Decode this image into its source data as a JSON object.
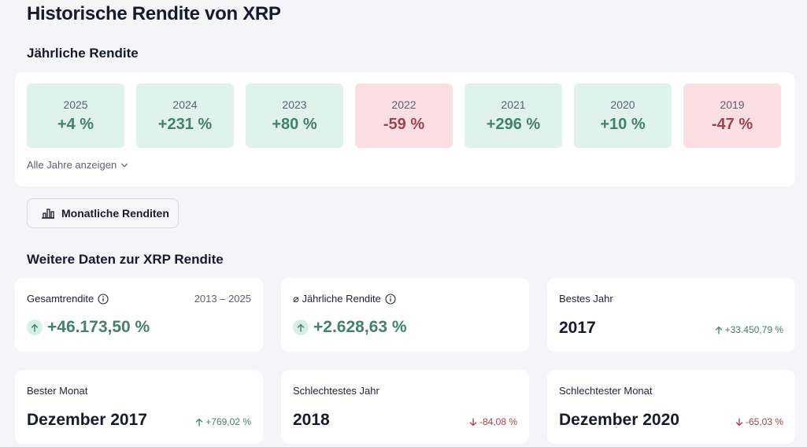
{
  "page": {
    "title": "Historische Rendite von XRP"
  },
  "yearly": {
    "title": "Jährliche Rendite",
    "tiles": [
      {
        "year": "2025",
        "value": "+4 %",
        "trend": "positive"
      },
      {
        "year": "2024",
        "value": "+231 %",
        "trend": "positive"
      },
      {
        "year": "2023",
        "value": "+80 %",
        "trend": "positive"
      },
      {
        "year": "2022",
        "value": "-59 %",
        "trend": "negative"
      },
      {
        "year": "2021",
        "value": "+296 %",
        "trend": "positive"
      },
      {
        "year": "2020",
        "value": "+10 %",
        "trend": "positive"
      },
      {
        "year": "2019",
        "value": "-47 %",
        "trend": "negative"
      }
    ],
    "show_all_label": "Alle Jahre anzeigen"
  },
  "monthly_button": {
    "label": "Monatliche Renditen",
    "icon": "bar-chart-icon"
  },
  "more": {
    "title": "Weitere Daten zur XRP Rendite",
    "total": {
      "label": "Gesamtrendite",
      "range": "2013 – 2025",
      "value": "+46.173,50 %"
    },
    "annual": {
      "label": "⌀ Jährliche Rendite",
      "value": "+2.628,63 %"
    },
    "best_year": {
      "label": "Bestes Jahr",
      "value": "2017",
      "change": "+33.450,79 %"
    },
    "best_month": {
      "label": "Bester Monat",
      "value": "Dezember 2017",
      "change": "+769,02 %"
    },
    "worst_year": {
      "label": "Schlechtestes Jahr",
      "value": "2018",
      "change": "-84,08 %"
    },
    "worst_month": {
      "label": "Schlechtester Monat",
      "value": "Dezember 2020",
      "change": "-65,03 %"
    }
  },
  "colors": {
    "positive_bg": "#dff2ec",
    "positive_text": "#44806a",
    "negative_bg": "#fbdfe3",
    "negative_text": "#a2424f"
  }
}
